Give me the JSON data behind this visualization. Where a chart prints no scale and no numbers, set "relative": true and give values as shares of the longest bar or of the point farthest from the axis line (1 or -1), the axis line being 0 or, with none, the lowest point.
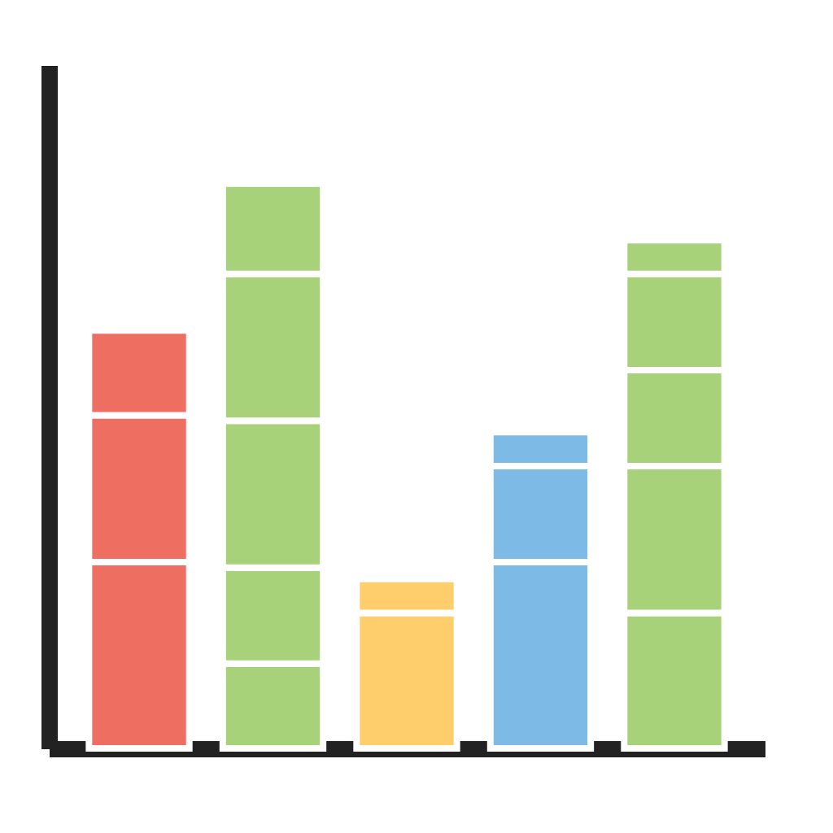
{
  "chart_data": {
    "type": "bar",
    "stacked": true,
    "relative": true,
    "tick_labels": false,
    "grid": false,
    "legend": false,
    "categories": [
      null,
      null,
      null,
      null,
      null
    ],
    "series": [
      {
        "values": [
          0.33,
          0.15,
          0.24,
          0.33,
          0.24
        ],
        "colors": [
          "#ee6e62",
          "#a8d27a",
          "#fecd6c",
          "#7dbbe6",
          "#a8d27a"
        ]
      },
      {
        "values": [
          0.26,
          0.17,
          0.06,
          0.17,
          0.26
        ],
        "colors": [
          "#ee6e62",
          "#a8d27a",
          "#fecd6c",
          "#7dbbe6",
          "#a8d27a"
        ]
      },
      {
        "values": [
          0.15,
          0.26,
          null,
          0.06,
          0.17
        ],
        "colors": [
          "#ee6e62",
          "#a8d27a",
          null,
          "#7dbbe6",
          "#a8d27a"
        ]
      },
      {
        "values": [
          null,
          0.26,
          null,
          null,
          0.17
        ],
        "colors": [
          null,
          "#a8d27a",
          null,
          null,
          "#a8d27a"
        ]
      },
      {
        "values": [
          null,
          0.16,
          null,
          null,
          0.06
        ],
        "colors": [
          null,
          "#a8d27a",
          null,
          null,
          "#a8d27a"
        ]
      }
    ]
  }
}
